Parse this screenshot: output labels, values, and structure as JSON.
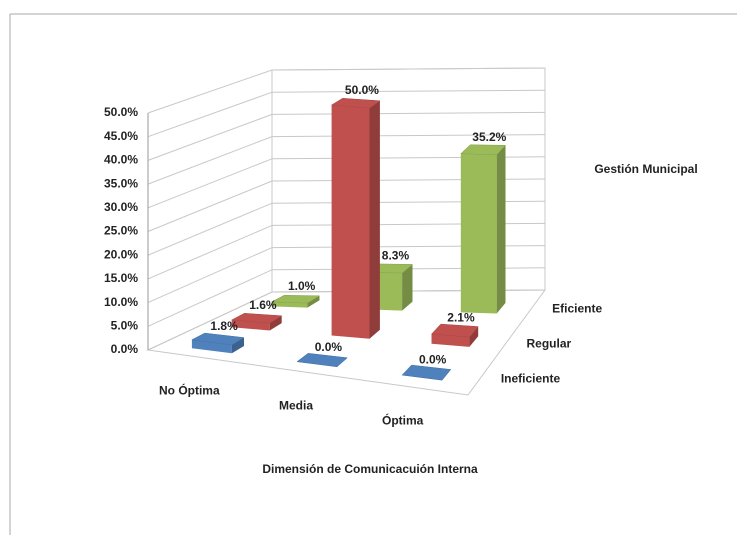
{
  "chart_data": {
    "type": "bar3d",
    "x_label": "Dimensión de Comunicacuión Interna",
    "depth_label": "Gestión Municipal",
    "categories": [
      "No Óptima",
      "Media",
      "Óptima"
    ],
    "series": [
      {
        "name": "Ineficiente",
        "color": "#4f81bd",
        "values": [
          1.8,
          0.0,
          0.0
        ],
        "value_labels": [
          "1.8%",
          "0.0%",
          "0.0%"
        ]
      },
      {
        "name": "Regular",
        "color": "#c0504d",
        "values": [
          1.6,
          50.0,
          2.1
        ],
        "value_labels": [
          "1.6%",
          "50.0%",
          "2.1%"
        ]
      },
      {
        "name": "Eficiente",
        "color": "#9bbb59",
        "values": [
          1.0,
          8.3,
          35.2
        ],
        "value_labels": [
          "1.0%",
          "8.3%",
          "35.2%"
        ]
      }
    ],
    "ylim": [
      0,
      50
    ],
    "yticks": [
      {
        "value": 0,
        "label": "0.0%"
      },
      {
        "value": 5,
        "label": "5.0%"
      },
      {
        "value": 10,
        "label": "10.0%"
      },
      {
        "value": 15,
        "label": "15.0%"
      },
      {
        "value": 20,
        "label": "20.0%"
      },
      {
        "value": 25,
        "label": "25.0%"
      },
      {
        "value": 30,
        "label": "30.0%"
      },
      {
        "value": 35,
        "label": "35.0%"
      },
      {
        "value": 40,
        "label": "40.0%"
      },
      {
        "value": 45,
        "label": "45.0%"
      },
      {
        "value": 50,
        "label": "50.0%"
      }
    ],
    "grid": true
  }
}
